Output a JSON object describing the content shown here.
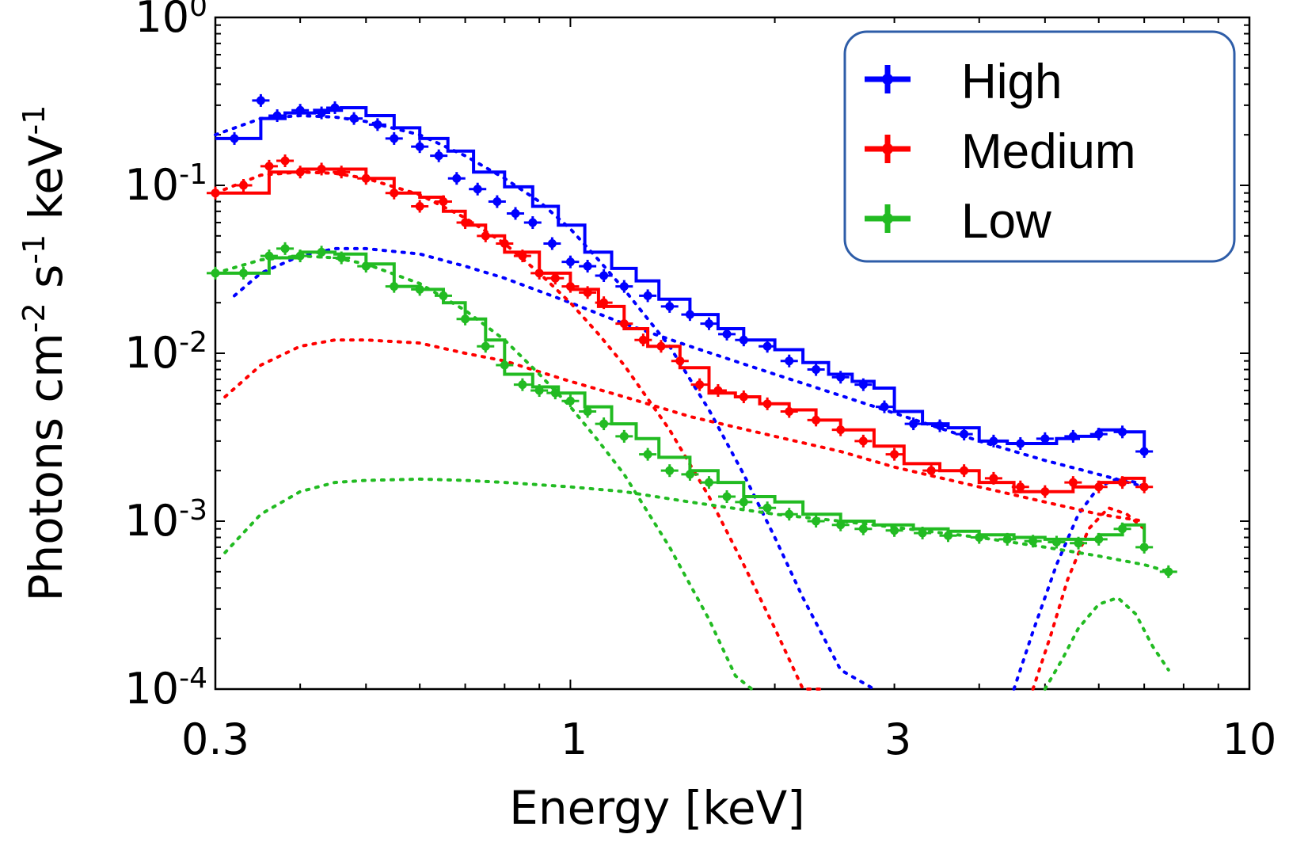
{
  "chart_data": {
    "type": "line",
    "title": "",
    "xlabel": "Energy [keV]",
    "ylabel": {
      "base": "Photons cm",
      "exp1": "-2",
      "mid": " s",
      "exp2": "-1",
      "tail": " keV",
      "exp3": "-1"
    },
    "xscale": "log",
    "yscale": "log",
    "xlim": [
      0.3,
      10
    ],
    "ylim": [
      0.0001,
      1
    ],
    "xticks": [
      {
        "value": 0.3,
        "label": "0.3"
      },
      {
        "value": 1,
        "label": "1"
      },
      {
        "value": 3,
        "label": "3"
      },
      {
        "value": 10,
        "label": "10"
      }
    ],
    "yticks": [
      {
        "value": 1,
        "base": "10",
        "exp": "0"
      },
      {
        "value": 0.1,
        "base": "10",
        "exp": "-1"
      },
      {
        "value": 0.01,
        "base": "10",
        "exp": "-2"
      },
      {
        "value": 0.001,
        "base": "10",
        "exp": "-3"
      },
      {
        "value": 0.0001,
        "base": "10",
        "exp": "-4"
      }
    ],
    "legend_placement": "top-right",
    "series": [
      {
        "name": "High",
        "color": "#0000ff",
        "data_x": [
          0.32,
          0.35,
          0.37,
          0.4,
          0.43,
          0.45,
          0.48,
          0.52,
          0.55,
          0.6,
          0.64,
          0.68,
          0.73,
          0.78,
          0.83,
          0.88,
          0.94,
          1.0,
          1.06,
          1.12,
          1.2,
          1.3,
          1.4,
          1.5,
          1.6,
          1.7,
          1.8,
          1.95,
          2.1,
          2.3,
          2.5,
          2.7,
          2.9,
          3.2,
          3.5,
          3.8,
          4.2,
          4.6,
          5.0,
          5.5,
          6.0,
          6.5,
          7.0
        ],
        "data_y": [
          0.19,
          0.32,
          0.26,
          0.28,
          0.27,
          0.29,
          0.25,
          0.23,
          0.19,
          0.17,
          0.15,
          0.11,
          0.095,
          0.08,
          0.068,
          0.06,
          0.045,
          0.035,
          0.033,
          0.029,
          0.025,
          0.022,
          0.019,
          0.017,
          0.015,
          0.013,
          0.012,
          0.011,
          0.009,
          0.008,
          0.0072,
          0.0065,
          0.0048,
          0.0038,
          0.0037,
          0.0033,
          0.003,
          0.0029,
          0.0031,
          0.0032,
          0.0033,
          0.0034,
          0.0026
        ],
        "model_x": [
          0.3,
          0.33,
          0.35,
          0.38,
          0.42,
          0.46,
          0.5,
          0.55,
          0.6,
          0.66,
          0.72,
          0.8,
          0.88,
          0.96,
          1.05,
          1.15,
          1.25,
          1.35,
          1.5,
          1.65,
          1.8,
          2.0,
          2.2,
          2.4,
          2.6,
          2.8,
          3.0,
          3.3,
          3.6,
          4.0,
          4.4,
          4.8,
          5.2,
          5.6,
          6.0,
          6.5,
          7.0
        ],
        "model_y": [
          0.19,
          0.19,
          0.25,
          0.27,
          0.28,
          0.29,
          0.26,
          0.22,
          0.19,
          0.16,
          0.12,
          0.098,
          0.075,
          0.058,
          0.04,
          0.032,
          0.027,
          0.021,
          0.017,
          0.014,
          0.012,
          0.0105,
          0.0088,
          0.0075,
          0.0068,
          0.0062,
          0.0045,
          0.0038,
          0.0036,
          0.003,
          0.0029,
          0.0029,
          0.0031,
          0.0032,
          0.0035,
          0.0034,
          0.0026
        ],
        "components": [
          {
            "x": [
              0.3,
              0.35,
              0.4,
              0.45,
              0.5,
              0.6,
              0.7,
              0.8,
              0.9,
              1.0,
              1.1,
              1.2,
              1.4,
              1.6,
              1.8,
              2.0,
              2.2,
              2.5,
              2.8
            ],
            "y": [
              0.2,
              0.25,
              0.26,
              0.255,
              0.24,
              0.2,
              0.15,
              0.11,
              0.08,
              0.055,
              0.036,
              0.024,
              0.011,
              0.0046,
              0.0019,
              0.0008,
              0.00035,
              0.00013,
              0.0001
            ]
          },
          {
            "x": [
              0.32,
              0.35,
              0.4,
              0.45,
              0.5,
              0.6,
              0.7,
              0.8,
              1.0,
              1.2,
              1.5,
              2.0,
              2.5,
              3.0,
              4.0,
              5.0,
              6.0,
              7.0
            ],
            "y": [
              0.022,
              0.03,
              0.038,
              0.042,
              0.042,
              0.039,
              0.033,
              0.028,
              0.02,
              0.015,
              0.011,
              0.0075,
              0.0056,
              0.0044,
              0.003,
              0.0023,
              0.0019,
              0.0016
            ]
          },
          {
            "x": [
              4.5,
              4.8,
              5.2,
              5.6,
              6.0,
              6.4,
              6.8,
              7.0
            ],
            "y": [
              0.0001,
              0.00022,
              0.00055,
              0.0011,
              0.0016,
              0.0018,
              0.0017,
              0.0016
            ]
          }
        ]
      },
      {
        "name": "Medium",
        "color": "#ff0000",
        "data_x": [
          0.3,
          0.33,
          0.36,
          0.38,
          0.4,
          0.43,
          0.46,
          0.5,
          0.55,
          0.6,
          0.65,
          0.7,
          0.75,
          0.8,
          0.85,
          0.9,
          0.95,
          1.0,
          1.06,
          1.12,
          1.2,
          1.28,
          1.36,
          1.45,
          1.55,
          1.65,
          1.8,
          1.95,
          2.1,
          2.3,
          2.5,
          2.7,
          3.0,
          3.4,
          3.8,
          4.2,
          4.6,
          5.0,
          5.5,
          6.0,
          6.5,
          7.0
        ],
        "data_y": [
          0.09,
          0.1,
          0.13,
          0.14,
          0.12,
          0.125,
          0.12,
          0.11,
          0.09,
          0.075,
          0.08,
          0.06,
          0.05,
          0.045,
          0.038,
          0.03,
          0.028,
          0.025,
          0.023,
          0.02,
          0.015,
          0.012,
          0.011,
          0.009,
          0.0065,
          0.006,
          0.0055,
          0.005,
          0.0045,
          0.004,
          0.0035,
          0.003,
          0.0025,
          0.002,
          0.002,
          0.0018,
          0.0016,
          0.0015,
          0.0017,
          0.0016,
          0.0017,
          0.0016
        ],
        "model_x": [
          0.3,
          0.33,
          0.36,
          0.4,
          0.45,
          0.5,
          0.55,
          0.6,
          0.65,
          0.7,
          0.75,
          0.8,
          0.9,
          1.0,
          1.1,
          1.2,
          1.3,
          1.45,
          1.6,
          1.75,
          1.9,
          2.1,
          2.3,
          2.5,
          2.8,
          3.1,
          3.5,
          4.0,
          4.5,
          5.0,
          5.5,
          6.0,
          6.5,
          7.0
        ],
        "model_y": [
          0.09,
          0.09,
          0.12,
          0.125,
          0.125,
          0.11,
          0.09,
          0.085,
          0.07,
          0.058,
          0.05,
          0.04,
          0.03,
          0.024,
          0.019,
          0.014,
          0.011,
          0.0082,
          0.0058,
          0.0055,
          0.005,
          0.0046,
          0.004,
          0.0035,
          0.0028,
          0.0022,
          0.002,
          0.0017,
          0.0015,
          0.0015,
          0.0016,
          0.0017,
          0.0018,
          0.0017
        ],
        "components": [
          {
            "x": [
              0.3,
              0.35,
              0.4,
              0.45,
              0.5,
              0.6,
              0.7,
              0.8,
              0.9,
              1.0,
              1.1,
              1.2,
              1.4,
              1.6,
              1.8,
              2.0,
              2.2,
              2.35
            ],
            "y": [
              0.09,
              0.115,
              0.12,
              0.118,
              0.11,
              0.088,
              0.064,
              0.045,
              0.03,
              0.02,
              0.013,
              0.0085,
              0.0035,
              0.0014,
              0.00055,
              0.00023,
              0.0001,
              0.0001
            ]
          },
          {
            "x": [
              0.31,
              0.35,
              0.4,
              0.45,
              0.5,
              0.6,
              0.7,
              0.8,
              1.0,
              1.2,
              1.5,
              2.0,
              2.5,
              3.0,
              4.0,
              5.0,
              6.0,
              7.0
            ],
            "y": [
              0.0055,
              0.0085,
              0.011,
              0.012,
              0.012,
              0.0115,
              0.01,
              0.009,
              0.0068,
              0.0055,
              0.0042,
              0.0032,
              0.0026,
              0.0021,
              0.0016,
              0.0013,
              0.0011,
              0.001
            ]
          },
          {
            "x": [
              4.8,
              5.1,
              5.4,
              5.8,
              6.2,
              6.6,
              7.0
            ],
            "y": [
              0.0001,
              0.00021,
              0.00045,
              0.0009,
              0.0012,
              0.0011,
              0.0009
            ]
          }
        ]
      },
      {
        "name": "Low",
        "color": "#22bb22",
        "data_x": [
          0.3,
          0.33,
          0.36,
          0.38,
          0.4,
          0.43,
          0.46,
          0.5,
          0.55,
          0.6,
          0.65,
          0.7,
          0.75,
          0.8,
          0.85,
          0.9,
          0.95,
          1.0,
          1.06,
          1.12,
          1.2,
          1.3,
          1.4,
          1.5,
          1.6,
          1.7,
          1.8,
          1.95,
          2.1,
          2.3,
          2.5,
          2.7,
          3.0,
          3.3,
          3.6,
          4.0,
          4.4,
          4.8,
          5.2,
          5.6,
          6.0,
          6.5,
          7.0,
          7.6
        ],
        "data_y": [
          0.03,
          0.03,
          0.038,
          0.042,
          0.038,
          0.04,
          0.037,
          0.033,
          0.025,
          0.024,
          0.022,
          0.016,
          0.011,
          0.0085,
          0.0065,
          0.006,
          0.0058,
          0.0052,
          0.0045,
          0.0038,
          0.0032,
          0.0025,
          0.002,
          0.0019,
          0.0017,
          0.0014,
          0.0013,
          0.0012,
          0.0011,
          0.001,
          0.00095,
          0.0009,
          0.00088,
          0.00085,
          0.00082,
          0.0008,
          0.00078,
          0.00076,
          0.00075,
          0.00074,
          0.00078,
          0.0009,
          0.0007,
          0.0005
        ],
        "model_x": [
          0.3,
          0.33,
          0.36,
          0.4,
          0.45,
          0.5,
          0.55,
          0.6,
          0.65,
          0.7,
          0.75,
          0.8,
          0.88,
          0.96,
          1.05,
          1.15,
          1.25,
          1.35,
          1.5,
          1.65,
          1.8,
          2.0,
          2.2,
          2.5,
          2.8,
          3.2,
          3.6,
          4.0,
          4.5,
          5.0,
          5.5,
          6.0,
          6.5,
          7.0
        ],
        "model_y": [
          0.03,
          0.03,
          0.037,
          0.04,
          0.039,
          0.034,
          0.025,
          0.024,
          0.02,
          0.016,
          0.012,
          0.0075,
          0.0063,
          0.0058,
          0.0048,
          0.0038,
          0.0031,
          0.0024,
          0.002,
          0.0017,
          0.0014,
          0.0013,
          0.0011,
          0.001,
          0.00095,
          0.0009,
          0.00087,
          0.00083,
          0.0008,
          0.00078,
          0.00078,
          0.00083,
          0.00095,
          0.00075
        ],
        "components": [
          {
            "x": [
              0.3,
              0.35,
              0.4,
              0.45,
              0.5,
              0.6,
              0.7,
              0.8,
              0.9,
              1.0,
              1.1,
              1.2,
              1.4,
              1.6,
              1.75,
              1.85
            ],
            "y": [
              0.03,
              0.036,
              0.038,
              0.037,
              0.034,
              0.026,
              0.018,
              0.012,
              0.0075,
              0.0048,
              0.003,
              0.0019,
              0.0007,
              0.00026,
              0.00012,
              0.0001
            ]
          },
          {
            "x": [
              0.31,
              0.35,
              0.4,
              0.45,
              0.5,
              0.6,
              0.7,
              0.8,
              1.0,
              1.2,
              1.5,
              2.0,
              2.5,
              3.0,
              4.0,
              5.0,
              6.0,
              7.0,
              7.6
            ],
            "y": [
              0.00065,
              0.0011,
              0.0015,
              0.0017,
              0.00175,
              0.00178,
              0.00175,
              0.0017,
              0.0016,
              0.0015,
              0.0013,
              0.0011,
              0.001,
              0.00092,
              0.0008,
              0.0007,
              0.00062,
              0.00055,
              0.0005
            ]
          },
          {
            "x": [
              5.0,
              5.3,
              5.6,
              6.0,
              6.4,
              6.8,
              7.2,
              7.6
            ],
            "y": [
              0.0001,
              0.00015,
              0.00023,
              0.00032,
              0.00035,
              0.00028,
              0.00018,
              0.00013
            ]
          }
        ]
      }
    ]
  }
}
